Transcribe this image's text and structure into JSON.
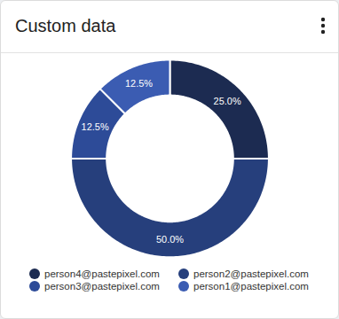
{
  "chart_data": {
    "type": "pie",
    "title": "Custom data",
    "categories": [
      "person4@pastepixel.com",
      "person2@pastepixel.com",
      "person3@pastepixel.com",
      "person1@pastepixel.com"
    ],
    "values": [
      25,
      50,
      12.5,
      12.5
    ],
    "value_labels": [
      "25.0%",
      "50.0%",
      "12.5%",
      "12.5%"
    ],
    "colors": [
      "#1c2b51",
      "#263f7c",
      "#2d4b98",
      "#3b5cb2"
    ],
    "data_labels": true,
    "legend": "bottom"
  }
}
